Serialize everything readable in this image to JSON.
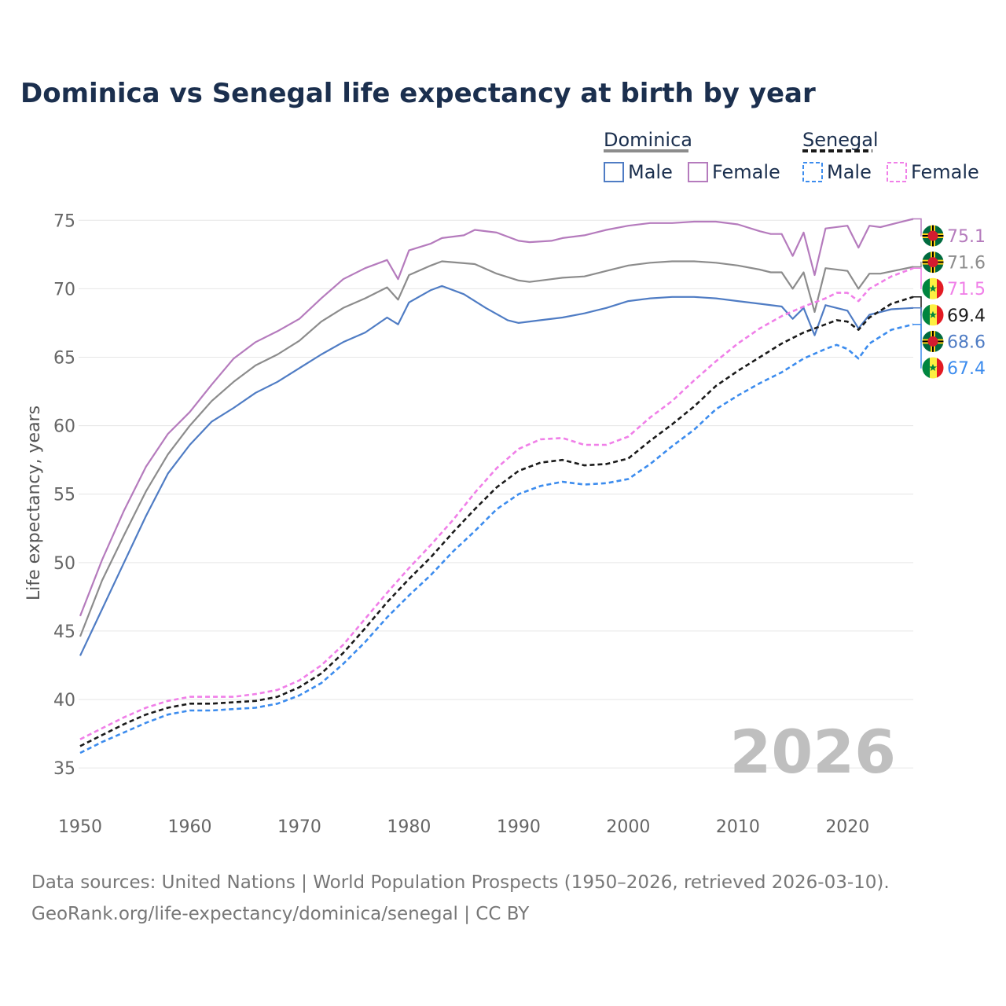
{
  "chart_data": {
    "type": "line",
    "title": "Dominica vs Senegal life expectancy at birth by year",
    "ylabel": "Life expectancy, years",
    "xlabel": "",
    "xlim": [
      1950,
      2026
    ],
    "ylim": [
      33,
      78
    ],
    "x_ticks": [
      1950,
      1960,
      1970,
      1980,
      1990,
      2000,
      2010,
      2020
    ],
    "y_ticks": [
      35,
      40,
      45,
      50,
      55,
      60,
      65,
      70,
      75
    ],
    "year_label": "2026",
    "legend": {
      "groups": [
        {
          "name": "Dominica",
          "items": [
            "Male",
            "Female"
          ]
        },
        {
          "name": "Senegal",
          "items": [
            "Male",
            "Female"
          ]
        }
      ]
    },
    "source_lines": [
      "Data sources: United Nations | World Population Prospects (1950–2026, retrieved 2026-03-10).",
      "GeoRank.org/life-expectancy/dominica/senegal | CC BY"
    ],
    "series": [
      {
        "name": "Dominica Total",
        "country": "Dominica",
        "sex": "Total",
        "color": "#8c8c8c",
        "dash": false,
        "end_value": "71.6",
        "flag": "dominica",
        "points": [
          [
            1950,
            44.6
          ],
          [
            1952,
            48.7
          ],
          [
            1954,
            52.0
          ],
          [
            1956,
            55.2
          ],
          [
            1958,
            57.9
          ],
          [
            1960,
            60.0
          ],
          [
            1962,
            61.8
          ],
          [
            1964,
            63.2
          ],
          [
            1966,
            64.4
          ],
          [
            1968,
            65.2
          ],
          [
            1970,
            66.2
          ],
          [
            1972,
            67.6
          ],
          [
            1974,
            68.6
          ],
          [
            1976,
            69.3
          ],
          [
            1978,
            70.1
          ],
          [
            1979,
            69.2
          ],
          [
            1980,
            71.0
          ],
          [
            1982,
            71.7
          ],
          [
            1983,
            72.0
          ],
          [
            1986,
            71.8
          ],
          [
            1988,
            71.1
          ],
          [
            1990,
            70.6
          ],
          [
            1991,
            70.5
          ],
          [
            1993,
            70.7
          ],
          [
            1994,
            70.8
          ],
          [
            1996,
            70.9
          ],
          [
            1998,
            71.3
          ],
          [
            2000,
            71.7
          ],
          [
            2002,
            71.9
          ],
          [
            2004,
            72.0
          ],
          [
            2006,
            72.0
          ],
          [
            2008,
            71.9
          ],
          [
            2010,
            71.7
          ],
          [
            2012,
            71.4
          ],
          [
            2013,
            71.2
          ],
          [
            2014,
            71.2
          ],
          [
            2015,
            70.0
          ],
          [
            2016,
            71.2
          ],
          [
            2017,
            68.3
          ],
          [
            2018,
            71.5
          ],
          [
            2020,
            71.3
          ],
          [
            2021,
            70.0
          ],
          [
            2022,
            71.1
          ],
          [
            2023,
            71.1
          ],
          [
            2026,
            71.6
          ]
        ]
      },
      {
        "name": "Dominica Male",
        "country": "Dominica",
        "sex": "Male",
        "color": "#4f7cc4",
        "dash": false,
        "end_value": "68.6",
        "flag": "dominica",
        "points": [
          [
            1950,
            43.2
          ],
          [
            1952,
            46.6
          ],
          [
            1954,
            50.0
          ],
          [
            1956,
            53.4
          ],
          [
            1958,
            56.5
          ],
          [
            1960,
            58.6
          ],
          [
            1962,
            60.3
          ],
          [
            1964,
            61.3
          ],
          [
            1966,
            62.4
          ],
          [
            1968,
            63.2
          ],
          [
            1970,
            64.2
          ],
          [
            1972,
            65.2
          ],
          [
            1974,
            66.1
          ],
          [
            1976,
            66.8
          ],
          [
            1978,
            67.9
          ],
          [
            1979,
            67.4
          ],
          [
            1980,
            69.0
          ],
          [
            1982,
            69.9
          ],
          [
            1983,
            70.2
          ],
          [
            1985,
            69.6
          ],
          [
            1987,
            68.6
          ],
          [
            1989,
            67.7
          ],
          [
            1990,
            67.5
          ],
          [
            1992,
            67.7
          ],
          [
            1994,
            67.9
          ],
          [
            1996,
            68.2
          ],
          [
            1998,
            68.6
          ],
          [
            2000,
            69.1
          ],
          [
            2002,
            69.3
          ],
          [
            2004,
            69.4
          ],
          [
            2006,
            69.4
          ],
          [
            2008,
            69.3
          ],
          [
            2010,
            69.1
          ],
          [
            2012,
            68.9
          ],
          [
            2014,
            68.7
          ],
          [
            2015,
            67.8
          ],
          [
            2016,
            68.6
          ],
          [
            2017,
            66.6
          ],
          [
            2018,
            68.8
          ],
          [
            2020,
            68.4
          ],
          [
            2021,
            67.1
          ],
          [
            2022,
            68.1
          ],
          [
            2024,
            68.5
          ],
          [
            2026,
            68.6
          ]
        ]
      },
      {
        "name": "Dominica Female",
        "country": "Dominica",
        "sex": "Female",
        "color": "#b57bbd",
        "dash": false,
        "end_value": "75.1",
        "flag": "dominica",
        "points": [
          [
            1950,
            46.1
          ],
          [
            1952,
            50.2
          ],
          [
            1954,
            53.8
          ],
          [
            1956,
            57.0
          ],
          [
            1958,
            59.4
          ],
          [
            1960,
            61.0
          ],
          [
            1962,
            63.0
          ],
          [
            1964,
            64.9
          ],
          [
            1966,
            66.1
          ],
          [
            1968,
            66.9
          ],
          [
            1970,
            67.8
          ],
          [
            1972,
            69.3
          ],
          [
            1974,
            70.7
          ],
          [
            1976,
            71.5
          ],
          [
            1978,
            72.1
          ],
          [
            1979,
            70.7
          ],
          [
            1980,
            72.8
          ],
          [
            1982,
            73.3
          ],
          [
            1983,
            73.7
          ],
          [
            1985,
            73.9
          ],
          [
            1986,
            74.3
          ],
          [
            1988,
            74.1
          ],
          [
            1990,
            73.5
          ],
          [
            1991,
            73.4
          ],
          [
            1993,
            73.5
          ],
          [
            1994,
            73.7
          ],
          [
            1996,
            73.9
          ],
          [
            1998,
            74.3
          ],
          [
            2000,
            74.6
          ],
          [
            2002,
            74.8
          ],
          [
            2004,
            74.8
          ],
          [
            2006,
            74.9
          ],
          [
            2008,
            74.9
          ],
          [
            2010,
            74.7
          ],
          [
            2012,
            74.2
          ],
          [
            2013,
            74.0
          ],
          [
            2014,
            74.0
          ],
          [
            2015,
            72.4
          ],
          [
            2016,
            74.1
          ],
          [
            2017,
            71.0
          ],
          [
            2018,
            74.4
          ],
          [
            2020,
            74.6
          ],
          [
            2021,
            73.0
          ],
          [
            2022,
            74.6
          ],
          [
            2023,
            74.5
          ],
          [
            2026,
            75.1
          ]
        ]
      },
      {
        "name": "Senegal Total",
        "country": "Senegal",
        "sex": "Total",
        "color": "#1a1a1a",
        "dash": true,
        "end_value": "69.4",
        "flag": "senegal",
        "points": [
          [
            1950,
            36.6
          ],
          [
            1952,
            37.4
          ],
          [
            1954,
            38.2
          ],
          [
            1956,
            38.9
          ],
          [
            1958,
            39.4
          ],
          [
            1960,
            39.7
          ],
          [
            1962,
            39.7
          ],
          [
            1964,
            39.8
          ],
          [
            1966,
            39.9
          ],
          [
            1968,
            40.2
          ],
          [
            1970,
            40.9
          ],
          [
            1972,
            41.9
          ],
          [
            1974,
            43.4
          ],
          [
            1976,
            45.2
          ],
          [
            1978,
            47.1
          ],
          [
            1980,
            48.8
          ],
          [
            1982,
            50.4
          ],
          [
            1984,
            52.2
          ],
          [
            1986,
            53.9
          ],
          [
            1988,
            55.5
          ],
          [
            1990,
            56.7
          ],
          [
            1992,
            57.3
          ],
          [
            1994,
            57.5
          ],
          [
            1996,
            57.1
          ],
          [
            1998,
            57.2
          ],
          [
            2000,
            57.6
          ],
          [
            2002,
            58.9
          ],
          [
            2004,
            60.1
          ],
          [
            2006,
            61.4
          ],
          [
            2008,
            62.9
          ],
          [
            2010,
            64.0
          ],
          [
            2012,
            65.0
          ],
          [
            2014,
            66.0
          ],
          [
            2016,
            66.8
          ],
          [
            2018,
            67.4
          ],
          [
            2019,
            67.7
          ],
          [
            2020,
            67.6
          ],
          [
            2021,
            67.0
          ],
          [
            2022,
            67.9
          ],
          [
            2024,
            68.9
          ],
          [
            2026,
            69.4
          ]
        ]
      },
      {
        "name": "Senegal Male",
        "country": "Senegal",
        "sex": "Male",
        "color": "#3c8cee",
        "dash": true,
        "end_value": "67.4",
        "flag": "senegal",
        "points": [
          [
            1950,
            36.1
          ],
          [
            1952,
            36.9
          ],
          [
            1954,
            37.6
          ],
          [
            1956,
            38.3
          ],
          [
            1958,
            38.9
          ],
          [
            1960,
            39.2
          ],
          [
            1962,
            39.2
          ],
          [
            1964,
            39.3
          ],
          [
            1966,
            39.4
          ],
          [
            1968,
            39.7
          ],
          [
            1970,
            40.3
          ],
          [
            1972,
            41.2
          ],
          [
            1974,
            42.6
          ],
          [
            1976,
            44.2
          ],
          [
            1978,
            46.0
          ],
          [
            1980,
            47.6
          ],
          [
            1982,
            49.1
          ],
          [
            1984,
            50.8
          ],
          [
            1986,
            52.3
          ],
          [
            1988,
            53.9
          ],
          [
            1990,
            55.0
          ],
          [
            1992,
            55.6
          ],
          [
            1994,
            55.9
          ],
          [
            1996,
            55.7
          ],
          [
            1998,
            55.8
          ],
          [
            2000,
            56.1
          ],
          [
            2002,
            57.2
          ],
          [
            2004,
            58.5
          ],
          [
            2006,
            59.7
          ],
          [
            2008,
            61.2
          ],
          [
            2010,
            62.2
          ],
          [
            2012,
            63.1
          ],
          [
            2014,
            63.9
          ],
          [
            2016,
            64.9
          ],
          [
            2018,
            65.6
          ],
          [
            2019,
            65.9
          ],
          [
            2020,
            65.6
          ],
          [
            2021,
            64.9
          ],
          [
            2022,
            66.0
          ],
          [
            2024,
            67.0
          ],
          [
            2026,
            67.4
          ]
        ]
      },
      {
        "name": "Senegal Female",
        "country": "Senegal",
        "sex": "Female",
        "color": "#f07fe8",
        "dash": true,
        "end_value": "71.5",
        "flag": "senegal",
        "points": [
          [
            1950,
            37.1
          ],
          [
            1952,
            37.9
          ],
          [
            1954,
            38.7
          ],
          [
            1956,
            39.4
          ],
          [
            1958,
            39.9
          ],
          [
            1960,
            40.2
          ],
          [
            1962,
            40.2
          ],
          [
            1964,
            40.2
          ],
          [
            1966,
            40.4
          ],
          [
            1968,
            40.7
          ],
          [
            1970,
            41.4
          ],
          [
            1972,
            42.5
          ],
          [
            1974,
            44.0
          ],
          [
            1976,
            45.9
          ],
          [
            1978,
            47.8
          ],
          [
            1980,
            49.6
          ],
          [
            1982,
            51.3
          ],
          [
            1984,
            53.1
          ],
          [
            1986,
            55.1
          ],
          [
            1988,
            56.9
          ],
          [
            1990,
            58.3
          ],
          [
            1992,
            59.0
          ],
          [
            1994,
            59.1
          ],
          [
            1996,
            58.6
          ],
          [
            1998,
            58.6
          ],
          [
            2000,
            59.2
          ],
          [
            2002,
            60.6
          ],
          [
            2004,
            61.8
          ],
          [
            2006,
            63.3
          ],
          [
            2008,
            64.7
          ],
          [
            2010,
            66.0
          ],
          [
            2012,
            67.1
          ],
          [
            2014,
            68.0
          ],
          [
            2016,
            68.7
          ],
          [
            2018,
            69.3
          ],
          [
            2019,
            69.7
          ],
          [
            2020,
            69.7
          ],
          [
            2021,
            69.1
          ],
          [
            2022,
            70.0
          ],
          [
            2024,
            70.9
          ],
          [
            2026,
            71.5
          ]
        ]
      }
    ],
    "end_label_order": [
      "Dominica Female",
      "Dominica Total",
      "Senegal Female",
      "Senegal Total",
      "Dominica Male",
      "Senegal Male"
    ]
  },
  "labels": {
    "dominica_group": "Dominica",
    "senegal_group": "Senegal",
    "male": "Male",
    "female": "Female"
  }
}
